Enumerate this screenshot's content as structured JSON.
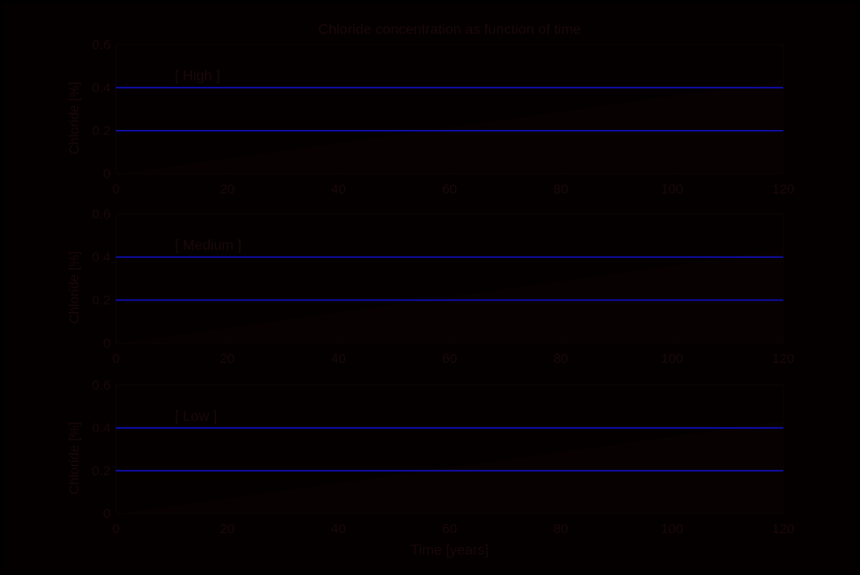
{
  "figure": {
    "title": "Chloride concentration as function of time",
    "xlabel": "Time [years]",
    "colors": {
      "background": "#040000",
      "line": "#1010c8",
      "text": "#1a0808",
      "axes": "#0e0303"
    }
  },
  "chart_data": [
    {
      "type": "line",
      "legend": "[ High ]",
      "ylabel": "Chloride [%]",
      "xlim": [
        0,
        120
      ],
      "ylim": [
        0,
        0.6
      ],
      "xticks": [
        "0",
        "20",
        "40",
        "60",
        "80",
        "100",
        "120"
      ],
      "yticks": [
        "0",
        "0.2",
        "0.4",
        "0.6"
      ],
      "series": [
        {
          "x": [
            0,
            120
          ],
          "values": [
            0.4,
            0.4
          ]
        },
        {
          "x": [
            0,
            120
          ],
          "values": [
            0.2,
            0.2
          ]
        }
      ]
    },
    {
      "type": "line",
      "legend": "[ Medium ]",
      "ylabel": "Chloride [%]",
      "xlim": [
        0,
        120
      ],
      "ylim": [
        0,
        0.6
      ],
      "xticks": [
        "0",
        "20",
        "40",
        "60",
        "80",
        "100",
        "120"
      ],
      "yticks": [
        "0",
        "0.2",
        "0.4",
        "0.6"
      ],
      "series": [
        {
          "x": [
            0,
            120
          ],
          "values": [
            0.4,
            0.4
          ]
        },
        {
          "x": [
            0,
            120
          ],
          "values": [
            0.2,
            0.2
          ]
        }
      ]
    },
    {
      "type": "line",
      "legend": "[ Low ]",
      "ylabel": "Chloride [%]",
      "xlim": [
        0,
        120
      ],
      "ylim": [
        0,
        0.6
      ],
      "xticks": [
        "0",
        "20",
        "40",
        "60",
        "80",
        "100",
        "120"
      ],
      "yticks": [
        "0",
        "0.2",
        "0.4",
        "0.6"
      ],
      "series": [
        {
          "x": [
            0,
            120
          ],
          "values": [
            0.4,
            0.4
          ]
        },
        {
          "x": [
            0,
            120
          ],
          "values": [
            0.2,
            0.2
          ]
        }
      ]
    }
  ]
}
